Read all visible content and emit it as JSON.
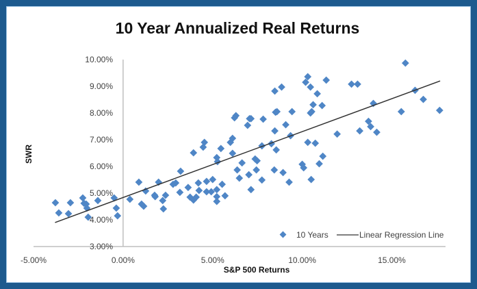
{
  "chart_data": {
    "type": "scatter",
    "title": "10 Year Annualized Real Returns",
    "xlabel": "S&P 500 Returns",
    "ylabel": "SWR",
    "xlim": [
      -5,
      18
    ],
    "ylim": [
      3,
      10
    ],
    "x_ticks": [
      -5,
      0,
      5,
      10,
      15
    ],
    "x_tick_labels": [
      "-5.00%",
      "0.00%",
      "5.00%",
      "10.00%",
      "15.00%"
    ],
    "y_ticks": [
      3,
      4,
      5,
      6,
      7,
      8,
      9,
      10
    ],
    "y_tick_labels": [
      "3.00%",
      "4.00%",
      "5.00%",
      "6.00%",
      "7.00%",
      "8.00%",
      "9.00%",
      "10.00%"
    ],
    "grid": false,
    "legend_position": "bottom-right",
    "series": [
      {
        "name": "10 Years",
        "color": "#4f86c6",
        "marker": "diamond",
        "points": [
          [
            -3.78,
            4.64
          ],
          [
            -3.59,
            4.26
          ],
          [
            -2.94,
            4.64
          ],
          [
            -3.05,
            4.23
          ],
          [
            -2.25,
            4.82
          ],
          [
            -2.18,
            4.62
          ],
          [
            -2.06,
            4.59
          ],
          [
            -2.02,
            4.44
          ],
          [
            -1.95,
            4.1
          ],
          [
            -1.41,
            4.72
          ],
          [
            -0.5,
            4.82
          ],
          [
            -0.38,
            4.44
          ],
          [
            -0.31,
            4.15
          ],
          [
            0.38,
            4.77
          ],
          [
            0.88,
            5.41
          ],
          [
            1.26,
            5.08
          ],
          [
            1.03,
            4.59
          ],
          [
            1.15,
            4.51
          ],
          [
            1.98,
            5.41
          ],
          [
            1.76,
            4.92
          ],
          [
            1.79,
            4.87
          ],
          [
            2.37,
            4.92
          ],
          [
            2.21,
            4.72
          ],
          [
            2.25,
            4.41
          ],
          [
            2.79,
            5.33
          ],
          [
            2.94,
            5.38
          ],
          [
            3.17,
            5.03
          ],
          [
            3.21,
            5.82
          ],
          [
            3.63,
            5.21
          ],
          [
            4.2,
            5.38
          ],
          [
            4.66,
            5.44
          ],
          [
            5.0,
            5.51
          ],
          [
            4.24,
            5.1
          ],
          [
            4.66,
            5.05
          ],
          [
            4.92,
            5.05
          ],
          [
            5.23,
            5.13
          ],
          [
            5.53,
            5.33
          ],
          [
            3.74,
            4.85
          ],
          [
            3.93,
            4.74
          ],
          [
            4.08,
            4.85
          ],
          [
            5.23,
            4.87
          ],
          [
            5.23,
            4.69
          ],
          [
            5.69,
            4.9
          ],
          [
            7.14,
            5.13
          ],
          [
            3.93,
            6.51
          ],
          [
            4.54,
            6.9
          ],
          [
            4.47,
            6.72
          ],
          [
            5.46,
            6.67
          ],
          [
            6.11,
            7.05
          ],
          [
            5.99,
            6.9
          ],
          [
            6.11,
            6.49
          ],
          [
            5.23,
            6.33
          ],
          [
            5.27,
            6.18
          ],
          [
            6.22,
            7.82
          ],
          [
            6.3,
            7.9
          ],
          [
            7.06,
            7.79
          ],
          [
            7.14,
            7.79
          ],
          [
            6.95,
            7.54
          ],
          [
            7.82,
            7.77
          ],
          [
            8.51,
            8.03
          ],
          [
            8.59,
            8.05
          ],
          [
            9.43,
            8.05
          ],
          [
            9.08,
            7.56
          ],
          [
            8.47,
            7.33
          ],
          [
            9.35,
            7.15
          ],
          [
            7.75,
            6.77
          ],
          [
            8.28,
            6.85
          ],
          [
            8.55,
            6.62
          ],
          [
            7.37,
            6.28
          ],
          [
            7.48,
            6.21
          ],
          [
            6.64,
            6.13
          ],
          [
            6.37,
            5.87
          ],
          [
            7.44,
            5.87
          ],
          [
            8.44,
            5.87
          ],
          [
            8.93,
            5.77
          ],
          [
            6.49,
            5.56
          ],
          [
            7.02,
            5.69
          ],
          [
            7.75,
            5.49
          ],
          [
            9.27,
            5.41
          ],
          [
            10.0,
            6.08
          ],
          [
            10.08,
            5.95
          ],
          [
            15.76,
            9.87
          ],
          [
            16.3,
            8.85
          ],
          [
            16.76,
            8.51
          ],
          [
            17.67,
            8.1
          ],
          [
            15.53,
            8.05
          ],
          [
            13.97,
            8.36
          ],
          [
            13.7,
            7.69
          ],
          [
            13.82,
            7.49
          ],
          [
            14.16,
            7.28
          ],
          [
            13.21,
            7.33
          ],
          [
            11.95,
            7.21
          ],
          [
            12.75,
            9.08
          ],
          [
            13.09,
            9.08
          ],
          [
            11.34,
            9.23
          ],
          [
            10.31,
            9.36
          ],
          [
            10.19,
            9.15
          ],
          [
            10.46,
            8.97
          ],
          [
            10.84,
            8.72
          ],
          [
            8.85,
            8.97
          ],
          [
            8.47,
            8.82
          ],
          [
            10.61,
            8.31
          ],
          [
            11.11,
            8.28
          ],
          [
            10.46,
            8.0
          ],
          [
            10.53,
            8.05
          ],
          [
            10.31,
            6.9
          ],
          [
            10.73,
            6.87
          ],
          [
            11.15,
            6.38
          ],
          [
            10.95,
            6.1
          ],
          [
            10.5,
            5.51
          ]
        ]
      },
      {
        "name": "Linear Regression Line",
        "color": "#333333",
        "type": "line",
        "points": [
          [
            -3.8,
            3.9
          ],
          [
            17.7,
            9.2
          ]
        ]
      }
    ]
  }
}
